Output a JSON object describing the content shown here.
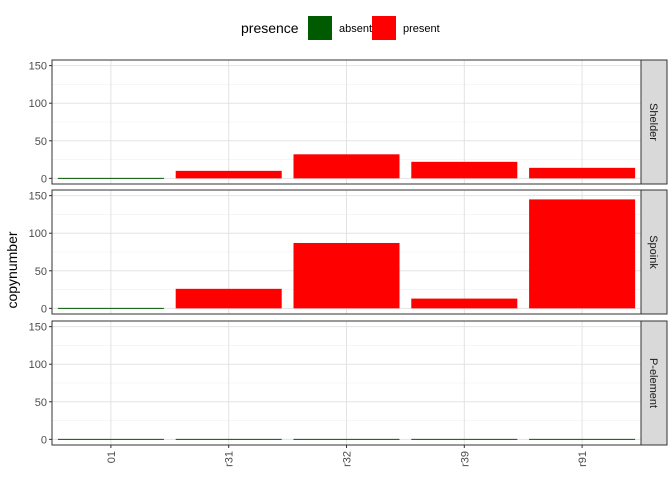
{
  "chart_data": {
    "type": "bar",
    "facet_direction": "rows",
    "categories": [
      "01",
      "r31",
      "r32",
      "r39",
      "r91"
    ],
    "ylabel": "copynumber",
    "xlabel": "",
    "ylim": [
      0,
      150
    ],
    "yticks": [
      0,
      50,
      100,
      150
    ],
    "grid": true,
    "legend": {
      "title": "presence",
      "position": "top",
      "entries": [
        {
          "name": "absent",
          "color": "#005a00"
        },
        {
          "name": "present",
          "color": "#ff0000"
        }
      ]
    },
    "panels": [
      {
        "strip": "Shelder",
        "values": [
          0,
          10,
          32,
          22,
          14
        ],
        "presence": [
          "absent",
          "present",
          "present",
          "present",
          "present"
        ]
      },
      {
        "strip": "Spoink",
        "values": [
          0,
          26,
          87,
          13,
          145
        ],
        "presence": [
          "absent",
          "present",
          "present",
          "present",
          "present"
        ]
      },
      {
        "strip": "P-element",
        "values": [
          0,
          0,
          0,
          0,
          0
        ],
        "presence": [
          "absent",
          "absent",
          "absent",
          "absent",
          "absent"
        ]
      }
    ]
  }
}
